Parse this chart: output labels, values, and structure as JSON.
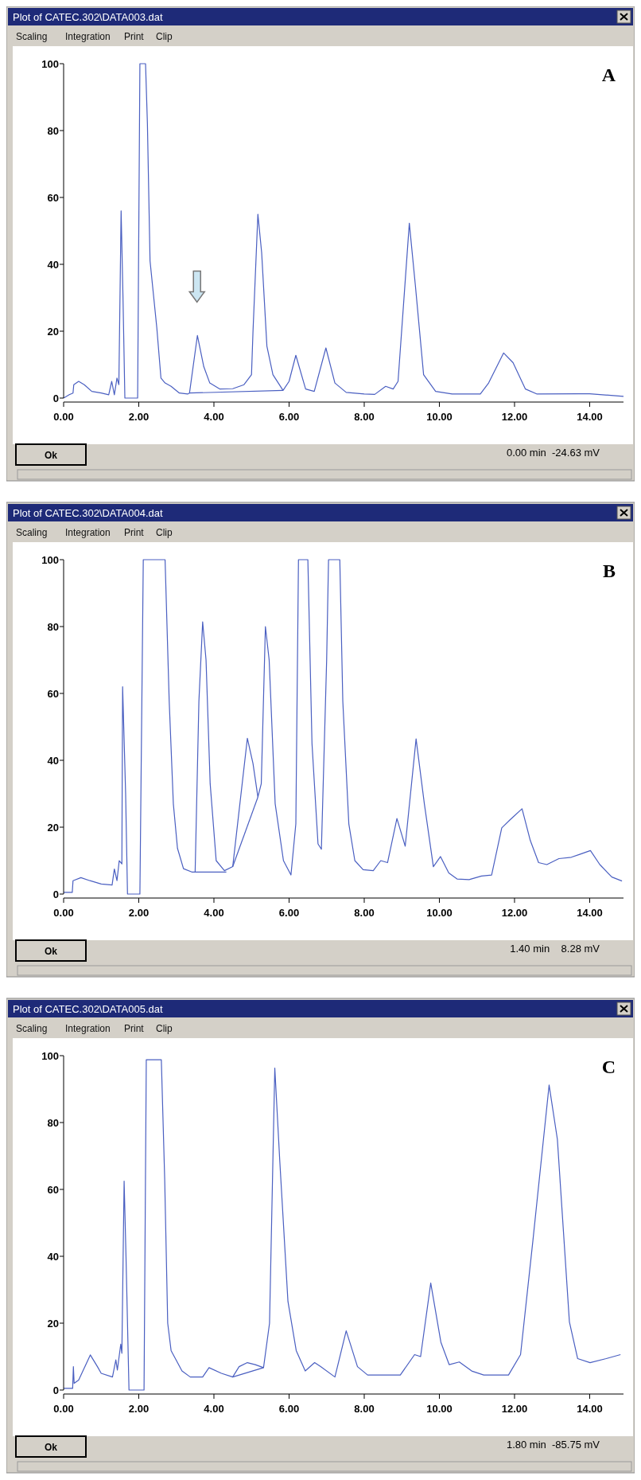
{
  "chart_data": [
    {
      "type": "line",
      "title": "Plot of CATEC.302\\DATA003.dat",
      "annotations": [
        "Scaling",
        "Integration",
        "Print",
        "Clip",
        "Ok",
        "0.00 min  -24.63 mV",
        "A"
      ],
      "xlim": [
        0,
        14.9
      ],
      "ylim": [
        0,
        100
      ],
      "xticks": [
        {
          "value": 0,
          "label": "0.00"
        },
        {
          "value": 2,
          "label": "2.00"
        },
        {
          "value": 4,
          "label": "4.00"
        },
        {
          "value": 6,
          "label": "6.00"
        },
        {
          "value": 8,
          "label": "8.00"
        },
        {
          "value": 10,
          "label": "10.00"
        },
        {
          "value": 12,
          "label": "12.00"
        },
        {
          "value": 14,
          "label": "14.00"
        }
      ],
      "yticks": [
        0,
        20,
        40,
        60,
        80,
        100
      ],
      "series": [
        {
          "color": "#4a5fc1",
          "x": [
            0,
            0.15,
            0.25,
            0.27,
            0.4,
            0.55,
            0.75,
            1.0,
            1.2,
            1.28,
            1.35,
            1.42,
            1.47,
            1.53,
            1.58,
            1.63,
            1.97,
            2.03,
            2.18,
            2.23,
            2.3,
            2.48,
            2.59,
            2.7,
            2.86,
            3.08,
            3.3,
            3.35,
            3.56,
            3.73,
            3.89,
            4.16,
            4.5,
            4.8,
            5.0,
            5.04,
            5.17,
            5.27,
            5.41,
            5.57,
            5.84,
            6.0,
            6.18,
            6.44,
            6.67,
            6.98,
            7.22,
            7.52,
            8.0,
            8.28,
            8.57,
            8.77,
            8.9,
            9.2,
            9.36,
            9.58,
            9.9,
            10.34,
            11.09,
            11.31,
            11.71,
            11.96,
            12.29,
            12.6,
            13.7,
            14.0,
            14.9
          ],
          "values": [
            0,
            1,
            1.5,
            4,
            5,
            4,
            2,
            1.5,
            1,
            5,
            1,
            6,
            4,
            56,
            30,
            0,
            0,
            100,
            100,
            82,
            41,
            21,
            6,
            4.5,
            3.5,
            1.5,
            1.2,
            1.5,
            18.7,
            9.4,
            4.5,
            2.7,
            2.8,
            4,
            7,
            20,
            55,
            43.5,
            15.5,
            7,
            2.3,
            5,
            12.8,
            2.7,
            2,
            15,
            4.5,
            1.7,
            1.2,
            1.1,
            3.5,
            2.7,
            5,
            52.3,
            33.8,
            7,
            2,
            1.2,
            1.2,
            4.5,
            13.5,
            10.6,
            2.7,
            1.2,
            1.3,
            1.3,
            0.5
          ]
        },
        {
          "color": "#4a5fc1",
          "x": [
            3.35,
            5.84
          ],
          "values": [
            1.5,
            2.3
          ]
        }
      ]
    },
    {
      "type": "line",
      "title": "Plot of CATEC.302\\DATA004.dat",
      "annotations": [
        "Scaling",
        "Integration",
        "Print",
        "Clip",
        "Ok",
        "1.40 min    8.28 mV",
        "B"
      ],
      "xlim": [
        0,
        14.9
      ],
      "ylim": [
        0,
        100
      ],
      "xticks": [
        {
          "value": 0,
          "label": "0.00"
        },
        {
          "value": 2,
          "label": "2.00"
        },
        {
          "value": 4,
          "label": "4.00"
        },
        {
          "value": 6,
          "label": "6.00"
        },
        {
          "value": 8,
          "label": "8.00"
        },
        {
          "value": 10,
          "label": "10.00"
        },
        {
          "value": 12,
          "label": "12.00"
        },
        {
          "value": 14,
          "label": "14.00"
        }
      ],
      "yticks": [
        0,
        20,
        40,
        60,
        80,
        100
      ],
      "series": [
        {
          "color": "#4a5fc1",
          "x": [
            0,
            0.23,
            0.25,
            0.46,
            0.7,
            1.0,
            1.29,
            1.35,
            1.42,
            1.48,
            1.55,
            1.57,
            1.65,
            1.7,
            2.03,
            2.12,
            2.7,
            2.81,
            2.92,
            3.03,
            3.19,
            3.41,
            3.5,
            3.6,
            3.7,
            3.79,
            3.9,
            4.06,
            4.28,
            4.5,
            4.89,
            5.04,
            5.17,
            5.26,
            5.37,
            5.47,
            5.63,
            5.85,
            6.05,
            6.18,
            6.25,
            6.5,
            6.61,
            6.77,
            6.86,
            7.0,
            7.05,
            7.35,
            7.43,
            7.59,
            7.75,
            7.97,
            8.24,
            8.44,
            8.62,
            8.87,
            9.09,
            9.38,
            9.6,
            9.84,
            10.03,
            10.25,
            10.47,
            10.79,
            11.12,
            11.39,
            11.66,
            11.88,
            12.2,
            12.42,
            12.64,
            12.86,
            13.18,
            13.51,
            13.72,
            14.02,
            14.27,
            14.59,
            14.86
          ],
          "values": [
            0.5,
            0.5,
            4,
            4.9,
            4,
            3,
            2.7,
            7.5,
            4,
            10,
            9,
            62,
            30,
            0,
            0,
            100,
            100,
            57.6,
            27,
            13.7,
            7.6,
            6.6,
            6.6,
            57.6,
            81.4,
            70,
            33,
            10,
            7,
            8.2,
            46.6,
            39,
            29,
            33,
            80,
            70,
            27,
            10,
            5.7,
            21,
            100,
            100,
            45,
            15,
            13.4,
            70,
            100,
            100,
            57.6,
            21,
            10,
            7.3,
            7,
            10,
            9.4,
            22.6,
            14.3,
            46.4,
            27,
            8.2,
            11.2,
            6.3,
            4.5,
            4.3,
            5.4,
            5.7,
            19.8,
            22.2,
            25.5,
            16,
            9.4,
            8.8,
            10.6,
            11,
            11.8,
            13,
            8.8,
            5.1,
            3.9
          ]
        },
        {
          "color": "#4a5fc1",
          "x": [
            3.5,
            4.33
          ],
          "values": [
            6.6,
            6.6
          ]
        },
        {
          "color": "#4a5fc1",
          "x": [
            4.5,
            5.17
          ],
          "values": [
            8.2,
            29
          ]
        }
      ]
    },
    {
      "type": "line",
      "title": "Plot of CATEC.302\\DATA005.dat",
      "annotations": [
        "Scaling",
        "Integration",
        "Print",
        "Clip",
        "Ok",
        "1.80 min  -85.75 mV",
        "C"
      ],
      "xlim": [
        0,
        14.9
      ],
      "ylim": [
        0,
        100
      ],
      "xticks": [
        {
          "value": 0,
          "label": "0.00"
        },
        {
          "value": 2,
          "label": "2.00"
        },
        {
          "value": 4,
          "label": "4.00"
        },
        {
          "value": 6,
          "label": "6.00"
        },
        {
          "value": 8,
          "label": "8.00"
        },
        {
          "value": 10,
          "label": "10.00"
        },
        {
          "value": 12,
          "label": "12.00"
        },
        {
          "value": 14,
          "label": "14.00"
        }
      ],
      "yticks": [
        0,
        20,
        40,
        60,
        80,
        100
      ],
      "series": [
        {
          "color": "#4a5fc1",
          "x": [
            0,
            0.24,
            0.26,
            0.28,
            0.4,
            0.71,
            0.9,
            1.0,
            1.3,
            1.39,
            1.43,
            1.52,
            1.55,
            1.61,
            1.66,
            1.74,
            2.14,
            2.2,
            2.6,
            2.69,
            2.77,
            2.86,
            3.15,
            3.37,
            3.7,
            3.87,
            4.2,
            4.5,
            4.67,
            4.89,
            5.1,
            5.32,
            5.48,
            5.62,
            5.75,
            5.97,
            6.19,
            6.43,
            6.68,
            6.84,
            7.22,
            7.52,
            7.82,
            8.09,
            8.58,
            8.96,
            9.34,
            9.5,
            9.77,
            10.04,
            10.26,
            10.53,
            10.86,
            11.18,
            11.84,
            12.16,
            12.49,
            12.92,
            13.14,
            13.46,
            13.68,
            14.01,
            14.44,
            14.82
          ],
          "values": [
            0.5,
            0.5,
            7,
            2,
            3,
            10.5,
            7,
            5,
            3.9,
            9,
            6,
            13.7,
            11,
            62.5,
            40,
            0,
            0,
            98.8,
            98.8,
            63,
            20,
            11.8,
            5.7,
            3.9,
            3.9,
            6.7,
            5,
            3.9,
            7,
            8.2,
            7.6,
            6.7,
            20,
            96.3,
            69,
            26.5,
            11.8,
            5.7,
            8.2,
            7,
            3.9,
            17.7,
            7,
            4.5,
            4.5,
            4.5,
            10.6,
            10,
            32,
            14.3,
            7.6,
            8.4,
            5.7,
            4.5,
            4.5,
            10.6,
            44.8,
            91.2,
            75,
            20.4,
            9.4,
            8.2,
            9.4,
            10.6
          ]
        },
        {
          "color": "#4a5fc1",
          "x": [
            4.5,
            5.32
          ],
          "values": [
            3.9,
            6.7
          ]
        }
      ]
    }
  ]
}
